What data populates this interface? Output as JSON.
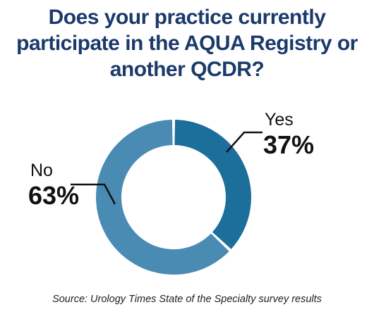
{
  "title_lines": [
    "Does your practice currently",
    "participate in the AQUA Registry or",
    "another QCDR?"
  ],
  "chart_data": {
    "type": "pie",
    "donut": true,
    "slices": [
      {
        "label": "Yes",
        "value": 37,
        "value_label": "37%",
        "color": "#1c6e9b"
      },
      {
        "label": "No",
        "value": 63,
        "value_label": "63%",
        "color": "#4a8bb3"
      }
    ],
    "legend": "none"
  },
  "source": "Source: Urology Times State of the Specialty survey results"
}
